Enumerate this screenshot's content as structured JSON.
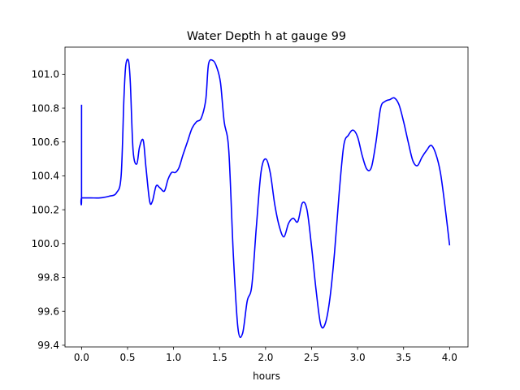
{
  "chart_data": {
    "type": "line",
    "title": "Water Depth h at gauge 99",
    "xlabel": "hours",
    "ylabel": "",
    "xlim": [
      -0.18,
      4.2
    ],
    "ylim": [
      99.39,
      101.16
    ],
    "xticks": [
      0.0,
      0.5,
      1.0,
      1.5,
      2.0,
      2.5,
      3.0,
      3.5,
      4.0
    ],
    "xtick_labels": [
      "0.0",
      "0.5",
      "1.0",
      "1.5",
      "2.0",
      "2.5",
      "3.0",
      "3.5",
      "4.0"
    ],
    "yticks": [
      99.4,
      99.6,
      99.8,
      100.0,
      100.2,
      100.4,
      100.6,
      100.8,
      101.0
    ],
    "ytick_labels": [
      "99.4",
      "99.6",
      "99.8",
      "100.0",
      "100.2",
      "100.4",
      "100.6",
      "100.8",
      "101.0"
    ],
    "grid": false,
    "series": [
      {
        "color": "#0000ff",
        "x": [
          0.0,
          0.0,
          0.002,
          0.1,
          0.2,
          0.3,
          0.38,
          0.43,
          0.46,
          0.48,
          0.51,
          0.53,
          0.56,
          0.6,
          0.63,
          0.67,
          0.7,
          0.74,
          0.77,
          0.81,
          0.85,
          0.9,
          0.94,
          0.98,
          1.02,
          1.06,
          1.1,
          1.15,
          1.2,
          1.25,
          1.3,
          1.35,
          1.38,
          1.43,
          1.47,
          1.51,
          1.55,
          1.6,
          1.65,
          1.7,
          1.75,
          1.8,
          1.85,
          1.9,
          1.95,
          2.0,
          2.05,
          2.1,
          2.15,
          2.2,
          2.25,
          2.3,
          2.35,
          2.4,
          2.45,
          2.5,
          2.55,
          2.6,
          2.65,
          2.7,
          2.75,
          2.8,
          2.85,
          2.9,
          2.95,
          3.0,
          3.05,
          3.1,
          3.15,
          3.2,
          3.25,
          3.3,
          3.35,
          3.4,
          3.45,
          3.5,
          3.55,
          3.6,
          3.65,
          3.7,
          3.75,
          3.8,
          3.85,
          3.9,
          3.95,
          4.0
        ],
        "y": [
          100.82,
          100.27,
          100.27,
          100.27,
          100.27,
          100.28,
          100.3,
          100.4,
          100.85,
          101.05,
          101.08,
          100.95,
          100.55,
          100.47,
          100.57,
          100.61,
          100.45,
          100.25,
          100.25,
          100.34,
          100.33,
          100.31,
          100.38,
          100.42,
          100.42,
          100.45,
          100.52,
          100.6,
          100.68,
          100.72,
          100.74,
          100.85,
          101.06,
          101.08,
          101.04,
          100.95,
          100.72,
          100.55,
          99.93,
          99.5,
          99.47,
          99.66,
          99.75,
          100.1,
          100.42,
          100.5,
          100.42,
          100.23,
          100.1,
          100.04,
          100.12,
          100.15,
          100.13,
          100.24,
          100.2,
          99.98,
          99.72,
          99.52,
          99.53,
          99.68,
          99.95,
          100.3,
          100.58,
          100.64,
          100.67,
          100.63,
          100.52,
          100.44,
          100.45,
          100.6,
          100.8,
          100.84,
          100.85,
          100.86,
          100.82,
          100.72,
          100.6,
          100.49,
          100.46,
          100.51,
          100.55,
          100.58,
          100.53,
          100.42,
          100.22,
          99.99
        ]
      }
    ]
  }
}
